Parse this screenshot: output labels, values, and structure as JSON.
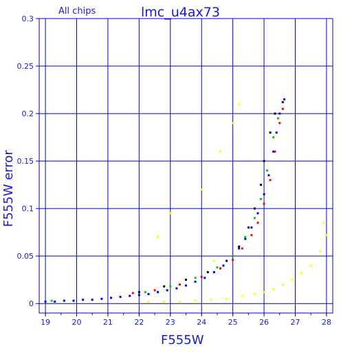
{
  "chart_data": {
    "type": "scatter",
    "title": "lmc_u4ax73",
    "subtitle": "All chips",
    "xlabel": "F555W",
    "ylabel": "F555W error",
    "xlim": [
      18.8,
      28.2
    ],
    "ylim": [
      -0.01,
      0.3
    ],
    "x_ticks": [
      19,
      20,
      21,
      22,
      23,
      24,
      25,
      26,
      27,
      28
    ],
    "x_tick_labels": [
      "19",
      "20",
      "21",
      "22",
      "23",
      "24",
      "25",
      "26",
      "27",
      "28"
    ],
    "y_ticks": [
      0,
      0.05,
      0.1,
      0.15,
      0.2,
      0.25,
      0.3
    ],
    "y_tick_labels": [
      "0",
      "0.05",
      "0.1",
      "0.15",
      "0.2",
      "0.25",
      "0.3"
    ],
    "grid": true,
    "colors": {
      "axes": "#0000cc",
      "grid": "#0000cc",
      "text": "#1a1ad0"
    },
    "series": [
      {
        "color": "#0000ff",
        "points": [
          [
            19.0,
            0.002
          ],
          [
            19.3,
            0.002
          ],
          [
            19.6,
            0.003
          ],
          [
            19.9,
            0.003
          ],
          [
            20.2,
            0.004
          ],
          [
            20.5,
            0.004
          ],
          [
            20.8,
            0.005
          ],
          [
            21.1,
            0.006
          ],
          [
            21.4,
            0.007
          ],
          [
            21.7,
            0.008
          ],
          [
            22.0,
            0.009
          ],
          [
            22.3,
            0.01
          ],
          [
            22.6,
            0.012
          ],
          [
            22.9,
            0.014
          ],
          [
            23.2,
            0.016
          ],
          [
            23.5,
            0.019
          ],
          [
            23.8,
            0.023
          ],
          [
            24.1,
            0.027
          ],
          [
            24.4,
            0.033
          ],
          [
            24.7,
            0.04
          ],
          [
            25.0,
            0.05
          ],
          [
            25.2,
            0.058
          ],
          [
            25.4,
            0.068
          ],
          [
            25.6,
            0.08
          ],
          [
            25.8,
            0.095
          ],
          [
            26.0,
            0.115
          ],
          [
            26.15,
            0.135
          ],
          [
            26.3,
            0.16
          ],
          [
            26.4,
            0.18
          ],
          [
            26.5,
            0.2
          ],
          [
            26.6,
            0.212
          ],
          [
            26.65,
            0.215
          ]
        ]
      },
      {
        "color": "#ff0000",
        "points": [
          [
            21.8,
            0.011
          ],
          [
            22.5,
            0.014
          ],
          [
            23.3,
            0.02
          ],
          [
            24.0,
            0.028
          ],
          [
            24.6,
            0.037
          ],
          [
            25.0,
            0.046
          ],
          [
            25.3,
            0.058
          ],
          [
            25.6,
            0.072
          ],
          [
            25.8,
            0.085
          ],
          [
            26.0,
            0.105
          ],
          [
            26.2,
            0.13
          ],
          [
            26.35,
            0.16
          ],
          [
            26.5,
            0.19
          ],
          [
            26.6,
            0.205
          ]
        ]
      },
      {
        "color": "#00cc00",
        "points": [
          [
            19.2,
            0.003
          ],
          [
            22.2,
            0.012
          ],
          [
            23.0,
            0.018
          ],
          [
            23.8,
            0.027
          ],
          [
            24.5,
            0.038
          ],
          [
            25.0,
            0.05
          ],
          [
            25.4,
            0.07
          ],
          [
            25.7,
            0.09
          ],
          [
            25.9,
            0.11
          ],
          [
            26.1,
            0.14
          ],
          [
            26.3,
            0.175
          ],
          [
            26.45,
            0.195
          ]
        ]
      },
      {
        "color": "#000000",
        "points": [
          [
            22.0,
            0.012
          ],
          [
            22.8,
            0.018
          ],
          [
            23.5,
            0.025
          ],
          [
            24.2,
            0.033
          ],
          [
            24.8,
            0.045
          ],
          [
            25.2,
            0.06
          ],
          [
            25.5,
            0.08
          ],
          [
            25.7,
            0.1
          ],
          [
            25.9,
            0.125
          ],
          [
            26.0,
            0.15
          ],
          [
            26.2,
            0.18
          ],
          [
            26.35,
            0.2
          ]
        ]
      },
      {
        "color": "#ffff00",
        "points": [
          [
            22.3,
            0.002
          ],
          [
            22.8,
            0.002
          ],
          [
            23.3,
            0.002
          ],
          [
            23.8,
            0.003
          ],
          [
            24.3,
            0.004
          ],
          [
            24.8,
            0.005
          ],
          [
            25.3,
            0.008
          ],
          [
            25.7,
            0.01
          ],
          [
            26.0,
            0.012
          ],
          [
            26.3,
            0.015
          ],
          [
            26.6,
            0.02
          ],
          [
            26.9,
            0.025
          ],
          [
            27.2,
            0.032
          ],
          [
            27.5,
            0.04
          ],
          [
            27.8,
            0.055
          ],
          [
            28.0,
            0.072
          ],
          [
            27.9,
            0.085
          ],
          [
            24.4,
            0.045
          ],
          [
            24.6,
            0.16
          ],
          [
            25.2,
            0.21
          ],
          [
            25.0,
            0.19
          ],
          [
            23.0,
            0.095
          ],
          [
            22.6,
            0.07
          ],
          [
            24.0,
            0.12
          ]
        ]
      }
    ]
  }
}
